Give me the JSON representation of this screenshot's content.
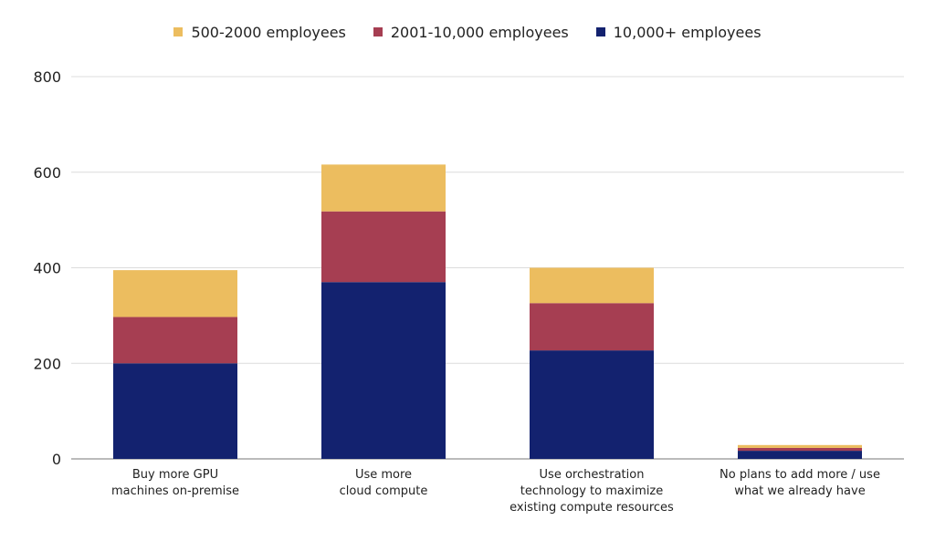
{
  "chart_data": {
    "type": "bar",
    "stacked": true,
    "title": "",
    "xlabel": "",
    "ylabel": "",
    "ylim": [
      0,
      800
    ],
    "yticks": [
      0,
      200,
      400,
      600,
      800
    ],
    "grid": true,
    "legend_position": "top-center",
    "categories": [
      [
        "Buy more GPU",
        "machines on-premise"
      ],
      [
        "Use more",
        "cloud compute"
      ],
      [
        "Use orchestration",
        "technology to maximize",
        "existing compute resources"
      ],
      [
        "No plans to add more / use",
        "what we already have"
      ]
    ],
    "series": [
      {
        "name": "10,000+ employees",
        "color": "#13226f",
        "values": [
          200,
          370,
          227,
          17
        ]
      },
      {
        "name": "2001-10,000 employees",
        "color": "#a63e52",
        "values": [
          97,
          148,
          99,
          6
        ]
      },
      {
        "name": "500-2000 employees",
        "color": "#ecbd5f",
        "values": [
          98,
          98,
          74,
          6
        ]
      }
    ],
    "legend_order": [
      2,
      1,
      0
    ]
  }
}
